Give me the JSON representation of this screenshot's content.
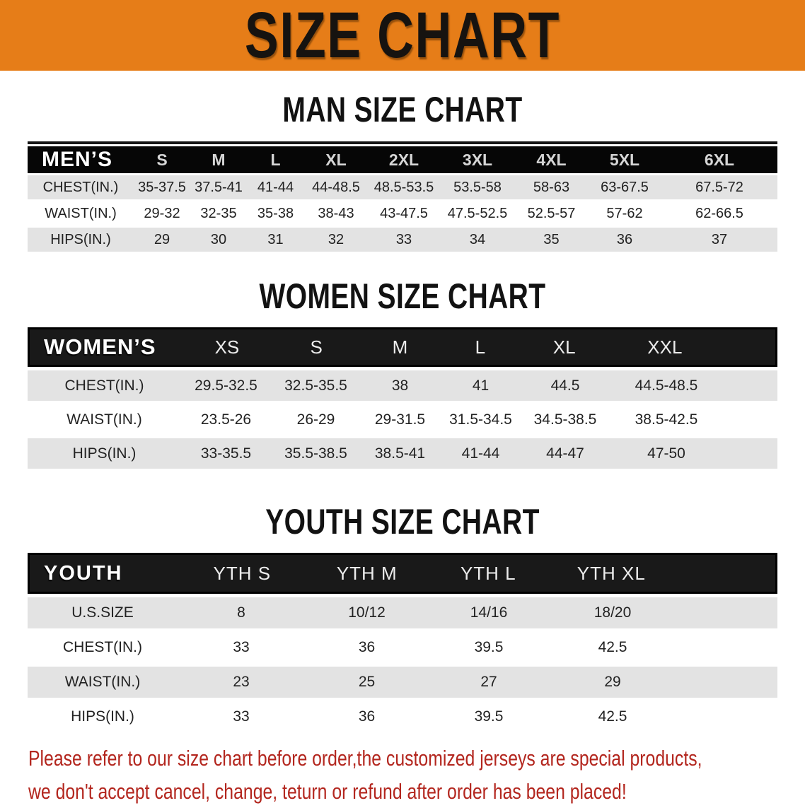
{
  "banner": {
    "title": "SIZE CHART",
    "bg_color": "#e67d18"
  },
  "sections": [
    {
      "key": "men",
      "heading": "MAN SIZE CHART",
      "corner": "MEN’S",
      "columns": [
        "S",
        "M",
        "L",
        "XL",
        "2XL",
        "3XL",
        "4XL",
        "5XL",
        "6XL"
      ],
      "rows": [
        {
          "label": "CHEST(IN.)",
          "values": [
            "35-37.5",
            "37.5-41",
            "41-44",
            "44-48.5",
            "48.5-53.5",
            "53.5-58",
            "58-63",
            "63-67.5",
            "67.5-72"
          ]
        },
        {
          "label": "WAIST(IN.)",
          "values": [
            "29-32",
            "32-35",
            "35-38",
            "38-43",
            "43-47.5",
            "47.5-52.5",
            "52.5-57",
            "57-62",
            "62-66.5"
          ]
        },
        {
          "label": "HIPS(IN.)",
          "values": [
            "29",
            "30",
            "31",
            "32",
            "33",
            "34",
            "35",
            "36",
            "37"
          ]
        }
      ]
    },
    {
      "key": "women",
      "heading": "WOMEN SIZE CHART",
      "corner": "WOMEN’S",
      "columns": [
        "XS",
        "S",
        "M",
        "L",
        "XL",
        "XXL"
      ],
      "rows": [
        {
          "label": "CHEST(IN.)",
          "values": [
            "29.5-32.5",
            "32.5-35.5",
            "38",
            "41",
            "44.5",
            "44.5-48.5"
          ]
        },
        {
          "label": "WAIST(IN.)",
          "values": [
            "23.5-26",
            "26-29",
            "29-31.5",
            "31.5-34.5",
            "34.5-38.5",
            "38.5-42.5"
          ]
        },
        {
          "label": "HIPS(IN.)",
          "values": [
            "33-35.5",
            "35.5-38.5",
            "38.5-41",
            "41-44",
            "44-47",
            "47-50"
          ]
        }
      ]
    },
    {
      "key": "youth",
      "heading": "YOUTH SIZE CHART",
      "corner": "YOUTH",
      "columns": [
        "YTH S",
        "YTH M",
        "YTH L",
        "YTH XL"
      ],
      "rows": [
        {
          "label": "U.S.SIZE",
          "values": [
            "8",
            "10/12",
            "14/16",
            "18/20"
          ]
        },
        {
          "label": "CHEST(IN.)",
          "values": [
            "33",
            "36",
            "39.5",
            "42.5"
          ]
        },
        {
          "label": "WAIST(IN.)",
          "values": [
            "23",
            "25",
            "27",
            "29"
          ]
        },
        {
          "label": "HIPS(IN.)",
          "values": [
            "33",
            "36",
            "39.5",
            "42.5"
          ]
        }
      ]
    }
  ],
  "footer": {
    "line1": "Please refer to our size chart before order,the customized jerseys are special products,",
    "line2": "we don't accept cancel, change, teturn or refund after order has been placed!",
    "text_color": "#b3261e"
  }
}
